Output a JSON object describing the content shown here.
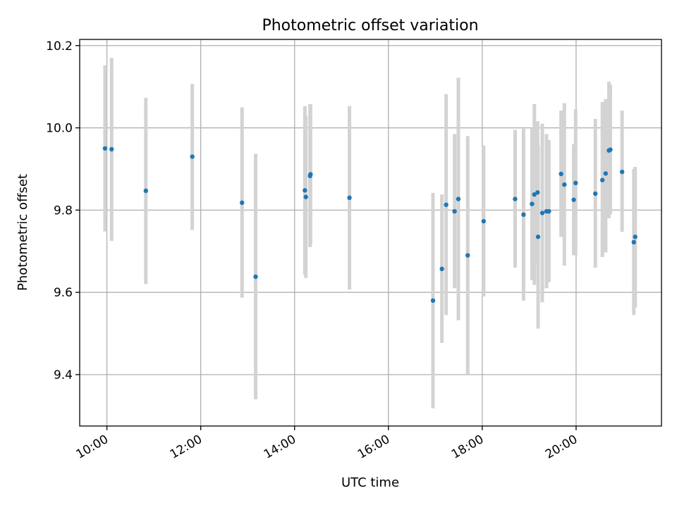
{
  "chart_data": {
    "type": "scatter",
    "title": "Photometric offset variation",
    "xlabel": "UTC time",
    "ylabel": "Photometric offset",
    "x_unit": "hour",
    "xlim": [
      9.42,
      21.82
    ],
    "ylim": [
      9.275,
      10.215
    ],
    "x_ticks": [
      {
        "value": 10,
        "label": "10:00"
      },
      {
        "value": 12,
        "label": "12:00"
      },
      {
        "value": 14,
        "label": "14:00"
      },
      {
        "value": 16,
        "label": "16:00"
      },
      {
        "value": 18,
        "label": "18:00"
      },
      {
        "value": 20,
        "label": "20:00"
      }
    ],
    "y_ticks": [
      {
        "value": 9.4,
        "label": "9.4"
      },
      {
        "value": 9.6,
        "label": "9.6"
      },
      {
        "value": 9.8,
        "label": "9.8"
      },
      {
        "value": 10.0,
        "label": "10.0"
      },
      {
        "value": 10.2,
        "label": "10.2"
      }
    ],
    "grid": true,
    "marker_color": "#1f77b4",
    "errorbar_color": "#d3d3d3",
    "points": [
      {
        "x": 9.96,
        "y": 9.95,
        "lo": 9.748,
        "hi": 10.152
      },
      {
        "x": 10.1,
        "y": 9.948,
        "lo": 9.725,
        "hi": 10.17
      },
      {
        "x": 10.83,
        "y": 9.847,
        "lo": 9.62,
        "hi": 10.073
      },
      {
        "x": 11.82,
        "y": 9.93,
        "lo": 9.752,
        "hi": 10.107
      },
      {
        "x": 12.88,
        "y": 9.818,
        "lo": 9.587,
        "hi": 10.05
      },
      {
        "x": 13.17,
        "y": 9.638,
        "lo": 9.34,
        "hi": 9.937
      },
      {
        "x": 14.22,
        "y": 9.848,
        "lo": 9.643,
        "hi": 10.053
      },
      {
        "x": 14.24,
        "y": 9.832,
        "lo": 9.635,
        "hi": 10.03
      },
      {
        "x": 14.33,
        "y": 9.883,
        "lo": 9.71,
        "hi": 10.057
      },
      {
        "x": 14.34,
        "y": 9.887,
        "lo": 9.716,
        "hi": 10.058
      },
      {
        "x": 15.17,
        "y": 9.83,
        "lo": 9.607,
        "hi": 10.053
      },
      {
        "x": 16.95,
        "y": 9.58,
        "lo": 9.318,
        "hi": 9.842
      },
      {
        "x": 17.14,
        "y": 9.657,
        "lo": 9.477,
        "hi": 9.838
      },
      {
        "x": 17.23,
        "y": 9.813,
        "lo": 9.545,
        "hi": 10.082
      },
      {
        "x": 17.41,
        "y": 9.797,
        "lo": 9.61,
        "hi": 9.985
      },
      {
        "x": 17.49,
        "y": 9.827,
        "lo": 9.532,
        "hi": 10.122
      },
      {
        "x": 17.69,
        "y": 9.69,
        "lo": 9.4,
        "hi": 9.98
      },
      {
        "x": 18.03,
        "y": 9.773,
        "lo": 9.59,
        "hi": 9.957
      },
      {
        "x": 18.7,
        "y": 9.827,
        "lo": 9.66,
        "hi": 9.995
      },
      {
        "x": 18.88,
        "y": 9.789,
        "lo": 9.58,
        "hi": 9.998
      },
      {
        "x": 19.06,
        "y": 9.815,
        "lo": 9.63,
        "hi": 10.0
      },
      {
        "x": 19.11,
        "y": 9.838,
        "lo": 9.618,
        "hi": 10.058
      },
      {
        "x": 19.18,
        "y": 9.843,
        "lo": 9.67,
        "hi": 10.016
      },
      {
        "x": 19.19,
        "y": 9.735,
        "lo": 9.512,
        "hi": 9.958
      },
      {
        "x": 19.28,
        "y": 9.793,
        "lo": 9.576,
        "hi": 10.01
      },
      {
        "x": 19.37,
        "y": 9.797,
        "lo": 9.61,
        "hi": 9.985
      },
      {
        "x": 19.42,
        "y": 9.797,
        "lo": 9.625,
        "hi": 9.97
      },
      {
        "x": 19.68,
        "y": 9.888,
        "lo": 9.735,
        "hi": 10.042
      },
      {
        "x": 19.75,
        "y": 9.862,
        "lo": 9.665,
        "hi": 10.06
      },
      {
        "x": 19.95,
        "y": 9.825,
        "lo": 9.69,
        "hi": 9.96
      },
      {
        "x": 19.99,
        "y": 9.866,
        "lo": 9.69,
        "hi": 10.045
      },
      {
        "x": 20.41,
        "y": 9.84,
        "lo": 9.66,
        "hi": 10.022
      },
      {
        "x": 20.56,
        "y": 9.873,
        "lo": 9.686,
        "hi": 10.063
      },
      {
        "x": 20.63,
        "y": 9.889,
        "lo": 9.697,
        "hi": 10.07
      },
      {
        "x": 20.7,
        "y": 9.945,
        "lo": 9.78,
        "hi": 10.112
      },
      {
        "x": 20.73,
        "y": 9.947,
        "lo": 9.79,
        "hi": 10.105
      },
      {
        "x": 20.98,
        "y": 9.893,
        "lo": 9.747,
        "hi": 10.042
      },
      {
        "x": 21.23,
        "y": 9.722,
        "lo": 9.545,
        "hi": 9.9
      },
      {
        "x": 21.26,
        "y": 9.735,
        "lo": 9.563,
        "hi": 9.905
      }
    ]
  }
}
